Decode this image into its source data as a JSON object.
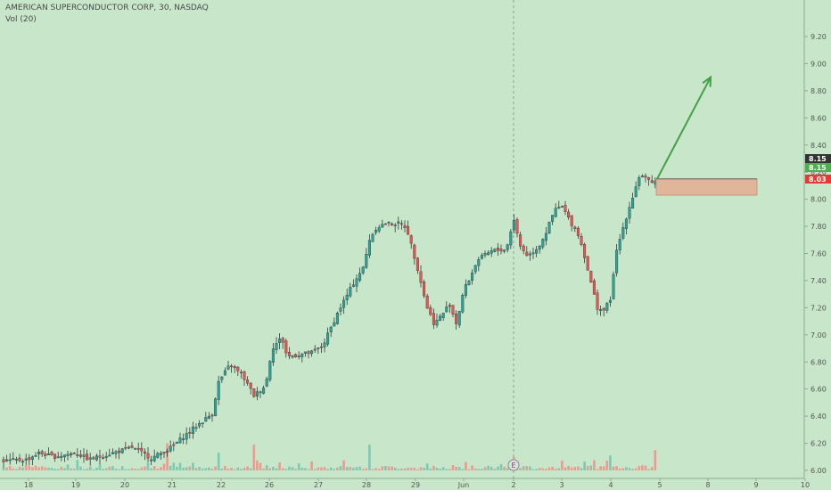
{
  "header": {
    "symbol_line": "AMERICAN SUPERCONDUCTOR CORP, 30, NASDAQ",
    "indicator": "Vol (20)"
  },
  "chart_data": {
    "type": "candlestick",
    "y_ticks": [
      "9.20",
      "9.00",
      "8.80",
      "8.60",
      "8.40",
      "8.20",
      "8.00",
      "7.80",
      "7.60",
      "7.40",
      "7.20",
      "7.00",
      "6.80",
      "6.60",
      "6.40",
      "6.20",
      "6.00"
    ],
    "ylim": [
      6.0,
      9.2
    ],
    "x_ticks": [
      "18",
      "19",
      "20",
      "21",
      "22",
      "26",
      "27",
      "28",
      "29",
      "Jun",
      "2",
      "3",
      "4",
      "5",
      "8",
      "9",
      "10"
    ],
    "price_tags": [
      {
        "value": "8.15",
        "color": "#333333"
      },
      {
        "value": "8.15",
        "color": "#4caf50"
      },
      {
        "value": "8.03",
        "color": "#e53935"
      }
    ],
    "earnings_marker": "E",
    "colors": {
      "up": "#26a69a",
      "down": "#ef5350",
      "vol_up": "#7cc9b4",
      "vol_down": "#ee9a8f",
      "arrow": "#43a047",
      "zone": "#e6a98f",
      "background": "#c8e6c9"
    },
    "annotations": [
      {
        "kind": "rectangle",
        "x_from": "5",
        "price_from": 8.03,
        "price_to": 8.15
      },
      {
        "kind": "arrow",
        "from_price": 8.15,
        "to_price": 8.9
      }
    ]
  }
}
